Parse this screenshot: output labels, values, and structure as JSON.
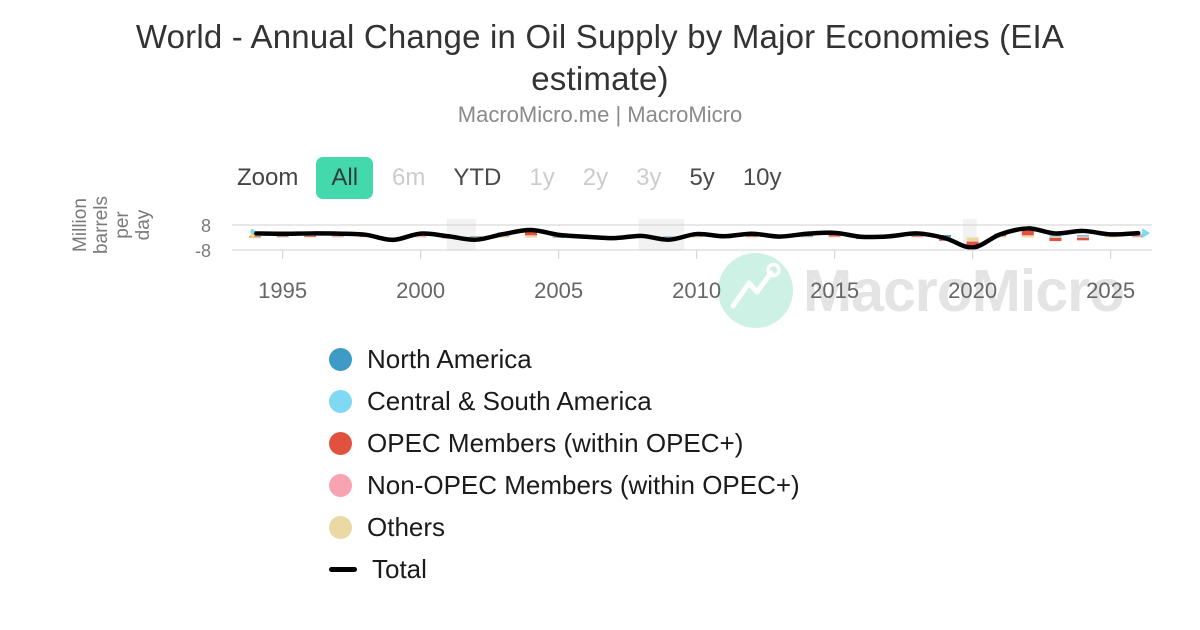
{
  "header": {
    "title": "World - Annual Change in Oil Supply by Major Economies (EIA estimate)",
    "subtitle": "MacroMicro.me | MacroMicro"
  },
  "toolbar": {
    "zoom_label": "Zoom",
    "ranges": [
      {
        "label": "All",
        "state": "active"
      },
      {
        "label": "6m",
        "state": "disabled"
      },
      {
        "label": "YTD",
        "state": "normal"
      },
      {
        "label": "1y",
        "state": "disabled"
      },
      {
        "label": "2y",
        "state": "disabled"
      },
      {
        "label": "3y",
        "state": "disabled"
      },
      {
        "label": "5y",
        "state": "normal"
      },
      {
        "label": "10y",
        "state": "normal"
      }
    ]
  },
  "watermark": {
    "text": "MacroMicro",
    "logo": "macromicro-mountain-logo",
    "circle_color": "#cdf2e5",
    "text_color": "#e4e4e4"
  },
  "chart_data": {
    "type": "combo-stacked-bar-line",
    "title": "World - Annual Change in Oil Supply by Major Economies (EIA estimate)",
    "ylabel": "Million barrels per day",
    "yticks": [
      8,
      -8
    ],
    "ylim": [
      -12,
      8.5
    ],
    "grid": "horizontal-only",
    "legend_position": "bottom-left",
    "xticks": [
      1995,
      2000,
      2005,
      2010,
      2015,
      2020,
      2025
    ],
    "years": [
      1994,
      1995,
      1996,
      1997,
      1998,
      1999,
      2000,
      2001,
      2002,
      2003,
      2004,
      2005,
      2006,
      2007,
      2008,
      2009,
      2010,
      2011,
      2012,
      2013,
      2014,
      2015,
      2016,
      2017,
      2018,
      2019,
      2020,
      2021,
      2022,
      2023,
      2024,
      2025,
      2026
    ],
    "recession_bands": [
      [
        2000.95,
        2002.0
      ],
      [
        2007.9,
        2009.55
      ],
      [
        2019.65,
        2020.15
      ]
    ],
    "series": [
      {
        "name": "North America",
        "type": "bar",
        "color": "#3d9bc6",
        "values": [
          0.2,
          0.3,
          0.3,
          0.3,
          0.2,
          -0.2,
          0.3,
          0.2,
          0.3,
          0.4,
          0.3,
          -0.3,
          0.2,
          0.2,
          -0.3,
          0.3,
          0.5,
          0.3,
          1.3,
          1.2,
          1.7,
          1.3,
          -0.5,
          0.7,
          2.2,
          1.3,
          -0.3,
          0.5,
          1.0,
          0.3,
          0.6,
          0.3,
          0.4
        ]
      },
      {
        "name": "Central & South America",
        "type": "bar",
        "color": "#7fd9f2",
        "values": [
          0.1,
          0.15,
          0.2,
          0.25,
          0.3,
          0.1,
          0.2,
          0.2,
          0.1,
          0.1,
          0.2,
          0.25,
          0.1,
          0.1,
          0.1,
          0.1,
          0.2,
          0.15,
          0.1,
          0.1,
          0.2,
          0.2,
          -0.2,
          0.1,
          0.2,
          0.1,
          -0.2,
          0.3,
          0.3,
          0.4,
          0.3,
          0.3,
          0.3
        ]
      },
      {
        "name": "OPEC Members (within OPEC+)",
        "type": "bar",
        "color": "#e0523e",
        "values": [
          0.3,
          0.4,
          0.5,
          0.8,
          0.9,
          -1.0,
          1.0,
          -0.5,
          -1.5,
          1.5,
          2.2,
          0.7,
          0.2,
          -0.5,
          1.0,
          -2.0,
          0.3,
          0.6,
          0.6,
          -0.6,
          0.1,
          0.9,
          0.9,
          -0.2,
          0.4,
          -2.0,
          -4.2,
          0.7,
          2.8,
          -2.0,
          -1.6,
          0.3,
          0.5
        ]
      },
      {
        "name": "Non-OPEC Members (within OPEC+)",
        "type": "bar",
        "color": "#f8a3b1",
        "values": [
          -0.4,
          0.1,
          0.2,
          1.0,
          0.5,
          -0.5,
          0.8,
          0.3,
          0.3,
          0.8,
          0.6,
          0.3,
          0.2,
          0.3,
          0.1,
          0.2,
          0.2,
          0.2,
          0.2,
          0.1,
          0.1,
          0.2,
          0.2,
          0.1,
          0.2,
          -0.1,
          -0.3,
          0.4,
          0.6,
          -0.3,
          -0.2,
          0.1,
          0.2
        ]
      },
      {
        "name": "Others",
        "type": "bar",
        "color": "#ead9a4",
        "values": [
          0.3,
          0.2,
          0.3,
          0.3,
          0.2,
          -0.3,
          0.4,
          0.3,
          0.2,
          0.5,
          1.0,
          0.4,
          0.1,
          -0.2,
          0.2,
          -0.1,
          1.0,
          0.2,
          0.3,
          0.2,
          0.3,
          0.5,
          -0.3,
          0.2,
          0.3,
          0.2,
          -2.4,
          0.5,
          1.0,
          0.5,
          0.5,
          2.2,
          0.5
        ]
      },
      {
        "name": "Total",
        "type": "line",
        "color": "#000000",
        "values": [
          2.6,
          2.4,
          2.6,
          2.5,
          1.8,
          -1.5,
          2.5,
          0.8,
          -1.4,
          2.2,
          4.8,
          1.7,
          0.5,
          -0.4,
          1.0,
          -1.4,
          2.2,
          0.8,
          2.4,
          0.6,
          2.4,
          3.0,
          0.4,
          0.8,
          2.6,
          -0.4,
          -6.4,
          2.0,
          5.8,
          2.6,
          4.2,
          2.0,
          2.8
        ]
      }
    ]
  },
  "colors": {
    "accent_teal": "#43d9ac",
    "grid": "#d9d9d9",
    "band": "#f2f2f2",
    "axis_text": "#666666",
    "end_marker": "#7fd9f2"
  }
}
